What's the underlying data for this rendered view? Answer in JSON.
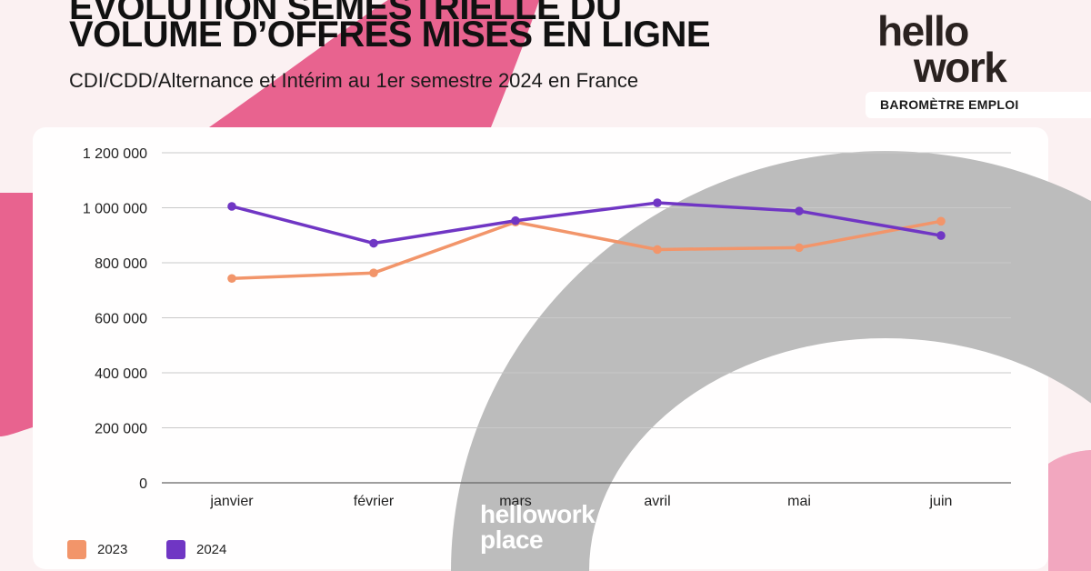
{
  "header": {
    "title_line1": "Évolution semestrielle du",
    "title_line2": "VOLUME D’OFFRES MISES EN LIGNE",
    "subtitle": "CDI/CDD/Alternance et Intérim au 1er semestre 2024 en France"
  },
  "brand": {
    "logo_line1": "hello",
    "logo_line2": "work",
    "tag": "BAROMÈTRE EMPLOI",
    "watermark_line1": "hellowork",
    "watermark_line2": "place"
  },
  "colors": {
    "background": "#fbf1f2",
    "pink_shape": "#e8638f",
    "gray_arc": "#b8b8b8",
    "series_2023": "#f2956a",
    "series_2024": "#7036c4"
  },
  "chart_data": {
    "type": "line",
    "title": "",
    "xlabel": "",
    "ylabel": "",
    "categories": [
      "janvier",
      "février",
      "mars",
      "avril",
      "mai",
      "juin"
    ],
    "ylim": [
      0,
      1200000
    ],
    "yticks": [
      0,
      200000,
      400000,
      600000,
      800000,
      1000000,
      1200000
    ],
    "ytick_labels": [
      "0",
      "200 000",
      "400 000",
      "600 000",
      "800 000",
      "1 000 000",
      "1 200 000"
    ],
    "grid": true,
    "legend_position": "bottom-left",
    "series": [
      {
        "name": "2023",
        "color": "#f2956a",
        "values": [
          743000,
          763000,
          948000,
          848000,
          855000,
          951000
        ]
      },
      {
        "name": "2024",
        "color": "#7036c4",
        "values": [
          1005000,
          871000,
          953000,
          1018000,
          988000,
          899000
        ]
      }
    ]
  }
}
